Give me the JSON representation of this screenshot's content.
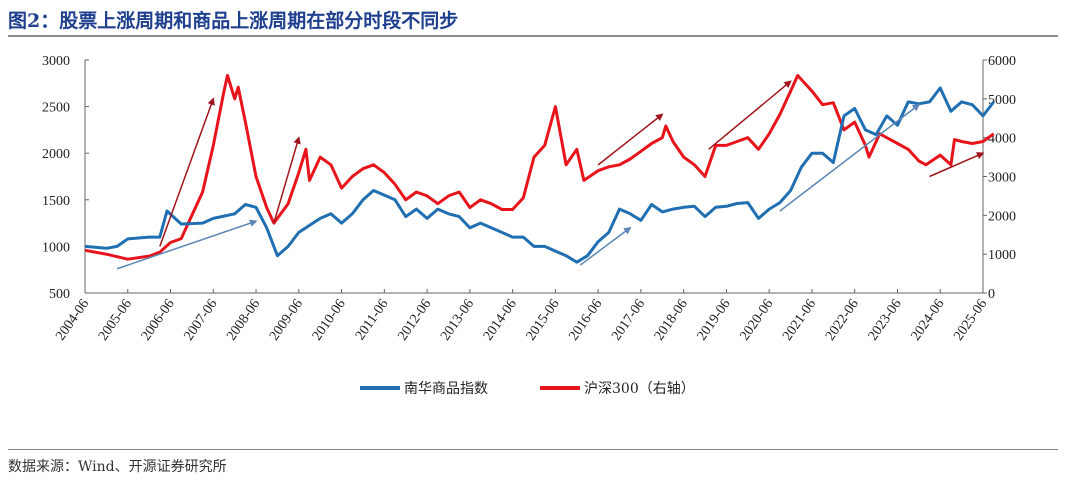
{
  "title": "图2：股票上涨周期和商品上涨周期在部分时段不同步",
  "source": "数据来源：Wind、开源证券研究所",
  "chart_data": {
    "type": "line",
    "title": "图2：股票上涨周期和商品上涨周期在部分时段不同步",
    "xlabel": "",
    "ylabel": "",
    "y2label": "",
    "x_ticks": [
      "2004-06",
      "2005-06",
      "2006-06",
      "2007-06",
      "2008-06",
      "2009-06",
      "2010-06",
      "2011-06",
      "2012-06",
      "2013-06",
      "2014-06",
      "2015-06",
      "2016-06",
      "2017-06",
      "2018-06",
      "2019-06",
      "2020-06",
      "2021-06",
      "2022-06",
      "2023-06",
      "2024-06",
      "2025-06"
    ],
    "ylim": [
      500,
      3000
    ],
    "y_ticks": [
      500,
      1000,
      1500,
      2000,
      2500,
      3000
    ],
    "y2lim": [
      0,
      6000
    ],
    "y2_ticks": [
      0,
      1000,
      2000,
      3000,
      4000,
      5000,
      6000
    ],
    "grid": false,
    "legend_position": "bottom",
    "series": [
      {
        "name": "南华商品指数",
        "axis": "left",
        "color": "#1f6fb2",
        "points": [
          [
            "2004-06",
            1000
          ],
          [
            "2004-12",
            980
          ],
          [
            "2005-03",
            1000
          ],
          [
            "2005-06",
            1080
          ],
          [
            "2005-12",
            1100
          ],
          [
            "2006-03",
            1100
          ],
          [
            "2006-05",
            1380
          ],
          [
            "2006-09",
            1240
          ],
          [
            "2007-03",
            1250
          ],
          [
            "2007-06",
            1300
          ],
          [
            "2007-12",
            1350
          ],
          [
            "2008-03",
            1450
          ],
          [
            "2008-06",
            1420
          ],
          [
            "2008-09",
            1200
          ],
          [
            "2008-12",
            900
          ],
          [
            "2009-03",
            1000
          ],
          [
            "2009-06",
            1150
          ],
          [
            "2009-12",
            1300
          ],
          [
            "2010-03",
            1350
          ],
          [
            "2010-06",
            1250
          ],
          [
            "2010-09",
            1350
          ],
          [
            "2010-12",
            1500
          ],
          [
            "2011-03",
            1600
          ],
          [
            "2011-06",
            1550
          ],
          [
            "2011-09",
            1500
          ],
          [
            "2011-12",
            1320
          ],
          [
            "2012-03",
            1400
          ],
          [
            "2012-06",
            1300
          ],
          [
            "2012-09",
            1400
          ],
          [
            "2012-12",
            1350
          ],
          [
            "2013-03",
            1320
          ],
          [
            "2013-06",
            1200
          ],
          [
            "2013-09",
            1250
          ],
          [
            "2013-12",
            1200
          ],
          [
            "2014-03",
            1150
          ],
          [
            "2014-06",
            1100
          ],
          [
            "2014-09",
            1100
          ],
          [
            "2014-12",
            1000
          ],
          [
            "2015-03",
            1000
          ],
          [
            "2015-06",
            950
          ],
          [
            "2015-09",
            900
          ],
          [
            "2015-12",
            830
          ],
          [
            "2016-03",
            900
          ],
          [
            "2016-06",
            1050
          ],
          [
            "2016-09",
            1150
          ],
          [
            "2016-12",
            1400
          ],
          [
            "2017-03",
            1350
          ],
          [
            "2017-06",
            1280
          ],
          [
            "2017-09",
            1450
          ],
          [
            "2017-12",
            1370
          ],
          [
            "2018-03",
            1400
          ],
          [
            "2018-06",
            1420
          ],
          [
            "2018-09",
            1430
          ],
          [
            "2018-12",
            1320
          ],
          [
            "2019-03",
            1420
          ],
          [
            "2019-06",
            1430
          ],
          [
            "2019-09",
            1460
          ],
          [
            "2019-12",
            1470
          ],
          [
            "2020-03",
            1300
          ],
          [
            "2020-06",
            1400
          ],
          [
            "2020-09",
            1470
          ],
          [
            "2020-12",
            1600
          ],
          [
            "2021-03",
            1850
          ],
          [
            "2021-06",
            2000
          ],
          [
            "2021-09",
            2000
          ],
          [
            "2021-12",
            1900
          ],
          [
            "2022-03",
            2400
          ],
          [
            "2022-06",
            2480
          ],
          [
            "2022-09",
            2250
          ],
          [
            "2022-12",
            2200
          ],
          [
            "2023-03",
            2400
          ],
          [
            "2023-06",
            2300
          ],
          [
            "2023-09",
            2550
          ],
          [
            "2023-12",
            2530
          ],
          [
            "2024-03",
            2550
          ],
          [
            "2024-06",
            2700
          ],
          [
            "2024-09",
            2450
          ],
          [
            "2024-12",
            2550
          ],
          [
            "2025-03",
            2520
          ],
          [
            "2025-06",
            2400
          ],
          [
            "2025-09",
            2550
          ]
        ]
      },
      {
        "name": "沪深300（右轴）",
        "axis": "right",
        "color": "#e8141b",
        "points": [
          [
            "2004-06",
            1100
          ],
          [
            "2004-12",
            1000
          ],
          [
            "2005-06",
            870
          ],
          [
            "2005-12",
            950
          ],
          [
            "2006-03",
            1050
          ],
          [
            "2006-06",
            1300
          ],
          [
            "2006-09",
            1400
          ],
          [
            "2006-12",
            2000
          ],
          [
            "2007-03",
            2600
          ],
          [
            "2007-06",
            3800
          ],
          [
            "2007-09",
            5200
          ],
          [
            "2007-10",
            5600
          ],
          [
            "2007-12",
            5000
          ],
          [
            "2008-01",
            5300
          ],
          [
            "2008-03",
            4400
          ],
          [
            "2008-06",
            3000
          ],
          [
            "2008-09",
            2200
          ],
          [
            "2008-11",
            1800
          ],
          [
            "2009-03",
            2300
          ],
          [
            "2009-06",
            3100
          ],
          [
            "2009-08",
            3700
          ],
          [
            "2009-09",
            2900
          ],
          [
            "2009-12",
            3500
          ],
          [
            "2010-03",
            3300
          ],
          [
            "2010-06",
            2700
          ],
          [
            "2010-09",
            3000
          ],
          [
            "2010-12",
            3200
          ],
          [
            "2011-03",
            3300
          ],
          [
            "2011-06",
            3100
          ],
          [
            "2011-09",
            2800
          ],
          [
            "2011-12",
            2400
          ],
          [
            "2012-03",
            2600
          ],
          [
            "2012-06",
            2500
          ],
          [
            "2012-09",
            2300
          ],
          [
            "2012-12",
            2500
          ],
          [
            "2013-03",
            2600
          ],
          [
            "2013-06",
            2200
          ],
          [
            "2013-09",
            2400
          ],
          [
            "2013-12",
            2300
          ],
          [
            "2014-03",
            2150
          ],
          [
            "2014-06",
            2150
          ],
          [
            "2014-09",
            2450
          ],
          [
            "2014-12",
            3500
          ],
          [
            "2015-03",
            3800
          ],
          [
            "2015-06",
            4800
          ],
          [
            "2015-09",
            3300
          ],
          [
            "2015-12",
            3700
          ],
          [
            "2016-02",
            2900
          ],
          [
            "2016-06",
            3150
          ],
          [
            "2016-09",
            3250
          ],
          [
            "2016-12",
            3300
          ],
          [
            "2017-03",
            3450
          ],
          [
            "2017-06",
            3650
          ],
          [
            "2017-09",
            3850
          ],
          [
            "2017-12",
            4000
          ],
          [
            "2018-01",
            4300
          ],
          [
            "2018-03",
            3900
          ],
          [
            "2018-06",
            3500
          ],
          [
            "2018-09",
            3300
          ],
          [
            "2018-12",
            3000
          ],
          [
            "2019-03",
            3800
          ],
          [
            "2019-06",
            3800
          ],
          [
            "2019-09",
            3900
          ],
          [
            "2019-12",
            4000
          ],
          [
            "2020-03",
            3700
          ],
          [
            "2020-06",
            4100
          ],
          [
            "2020-09",
            4600
          ],
          [
            "2020-12",
            5200
          ],
          [
            "2021-02",
            5600
          ],
          [
            "2021-06",
            5200
          ],
          [
            "2021-09",
            4850
          ],
          [
            "2021-12",
            4900
          ],
          [
            "2022-03",
            4200
          ],
          [
            "2022-06",
            4400
          ],
          [
            "2022-09",
            3800
          ],
          [
            "2022-10",
            3500
          ],
          [
            "2023-01",
            4100
          ],
          [
            "2023-06",
            3850
          ],
          [
            "2023-09",
            3700
          ],
          [
            "2023-12",
            3400
          ],
          [
            "2024-02",
            3300
          ],
          [
            "2024-06",
            3550
          ],
          [
            "2024-09",
            3300
          ],
          [
            "2024-10",
            3950
          ],
          [
            "2024-12",
            3900
          ],
          [
            "2025-03",
            3850
          ],
          [
            "2025-06",
            3900
          ],
          [
            "2025-09",
            4100
          ]
        ]
      }
    ],
    "annotations": [
      {
        "type": "arrow",
        "axis": "right",
        "color": "#a0141b",
        "from": [
          "2006-03",
          1200
        ],
        "to": [
          "2007-06",
          5000
        ]
      },
      {
        "type": "arrow",
        "axis": "right",
        "color": "#a0141b",
        "from": [
          "2008-11",
          1800
        ],
        "to": [
          "2009-06",
          4000
        ]
      },
      {
        "type": "arrow",
        "axis": "right",
        "color": "#a0141b",
        "from": [
          "2016-06",
          3300
        ],
        "to": [
          "2017-12",
          4600
        ]
      },
      {
        "type": "arrow",
        "axis": "right",
        "color": "#a0141b",
        "from": [
          "2019-01",
          3700
        ],
        "to": [
          "2020-12",
          5450
        ]
      },
      {
        "type": "arrow",
        "axis": "right",
        "color": "#a0141b",
        "from": [
          "2024-03",
          3000
        ],
        "to": [
          "2025-06",
          3600
        ]
      },
      {
        "type": "arrow",
        "axis": "left",
        "color": "#5b86b5",
        "from": [
          "2005-03",
          760
        ],
        "to": [
          "2008-06",
          1270
        ]
      },
      {
        "type": "arrow",
        "axis": "left",
        "color": "#5b86b5",
        "from": [
          "2016-01",
          800
        ],
        "to": [
          "2017-03",
          1200
        ]
      },
      {
        "type": "arrow",
        "axis": "left",
        "color": "#5b86b5",
        "from": [
          "2020-09",
          1380
        ],
        "to": [
          "2023-12",
          2520
        ]
      }
    ]
  }
}
